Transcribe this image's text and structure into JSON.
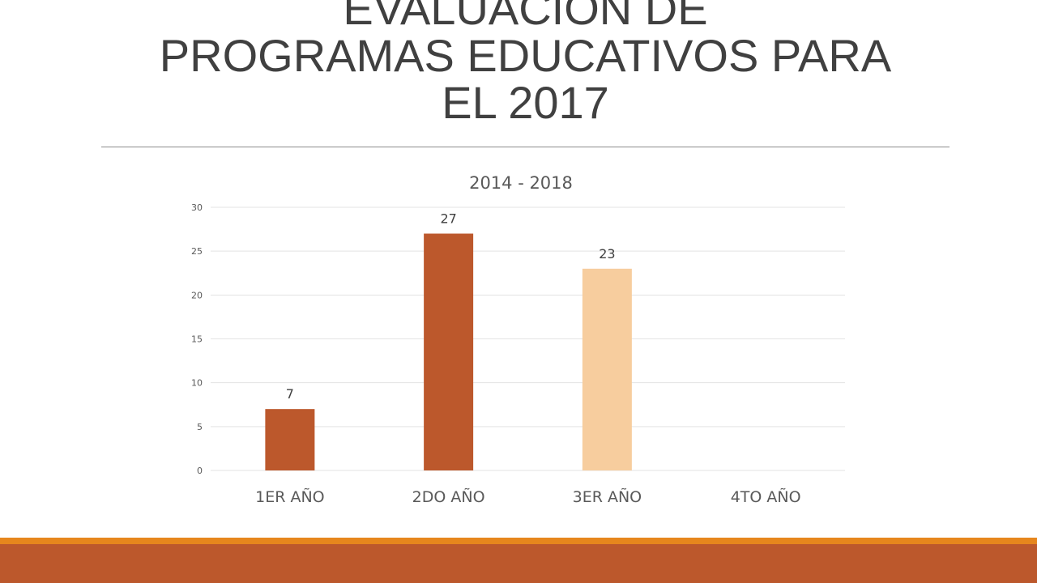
{
  "slide": {
    "title_lines": [
      "EVALUACIÓN DE",
      "PROGRAMAS EDUCATIVOS PARA",
      "EL 2017"
    ]
  },
  "colors": {
    "bar_dark": "#bc582c",
    "bar_light": "#f7cd9e",
    "grid": "#e3e3e3",
    "footer_thin": "#e6861d",
    "footer_band": "#bc582c"
  },
  "chart_data": {
    "type": "bar",
    "title": "2014 - 2018",
    "xlabel": "",
    "ylabel": "",
    "categories": [
      "1ER AÑO",
      "2DO AÑO",
      "3ER AÑO",
      "4TO AÑO"
    ],
    "values": [
      7,
      27,
      23,
      null
    ],
    "data_labels": [
      "7",
      "27",
      "23",
      ""
    ],
    "bar_colors": [
      "#bc582c",
      "#bc582c",
      "#f7cd9e",
      "#bc582c"
    ],
    "ylim": [
      0,
      30
    ],
    "yticks": [
      0,
      5,
      10,
      15,
      20,
      25,
      30
    ],
    "grid": true,
    "legend": "none"
  }
}
